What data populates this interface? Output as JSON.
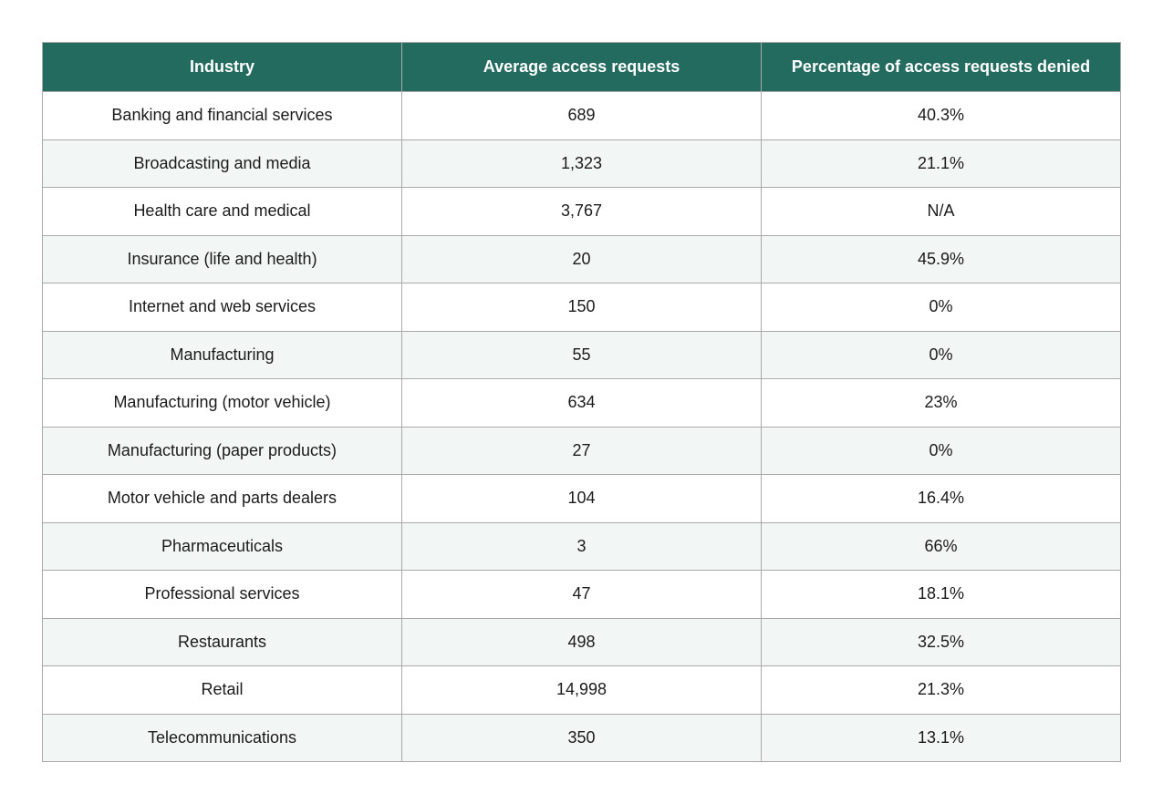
{
  "table": {
    "header_color": "#236b5e",
    "stripe_color": "#f2f6f5",
    "columns": [
      "Industry",
      "Average access requests",
      "Percentage of access requests denied"
    ],
    "rows": [
      [
        "Banking and financial services",
        "689",
        "40.3%"
      ],
      [
        "Broadcasting and media",
        "1,323",
        "21.1%"
      ],
      [
        "Health care and medical",
        "3,767",
        "N/A"
      ],
      [
        "Insurance (life and health)",
        "20",
        "45.9%"
      ],
      [
        "Internet and web services",
        "150",
        "0%"
      ],
      [
        "Manufacturing",
        "55",
        "0%"
      ],
      [
        "Manufacturing (motor vehicle)",
        "634",
        "23%"
      ],
      [
        "Manufacturing (paper products)",
        "27",
        "0%"
      ],
      [
        "Motor vehicle and parts dealers",
        "104",
        "16.4%"
      ],
      [
        "Pharmaceuticals",
        "3",
        "66%"
      ],
      [
        "Professional services",
        "47",
        "18.1%"
      ],
      [
        "Restaurants",
        "498",
        "32.5%"
      ],
      [
        "Retail",
        "14,998",
        "21.3%"
      ],
      [
        "Telecommunications",
        "350",
        "13.1%"
      ]
    ]
  }
}
